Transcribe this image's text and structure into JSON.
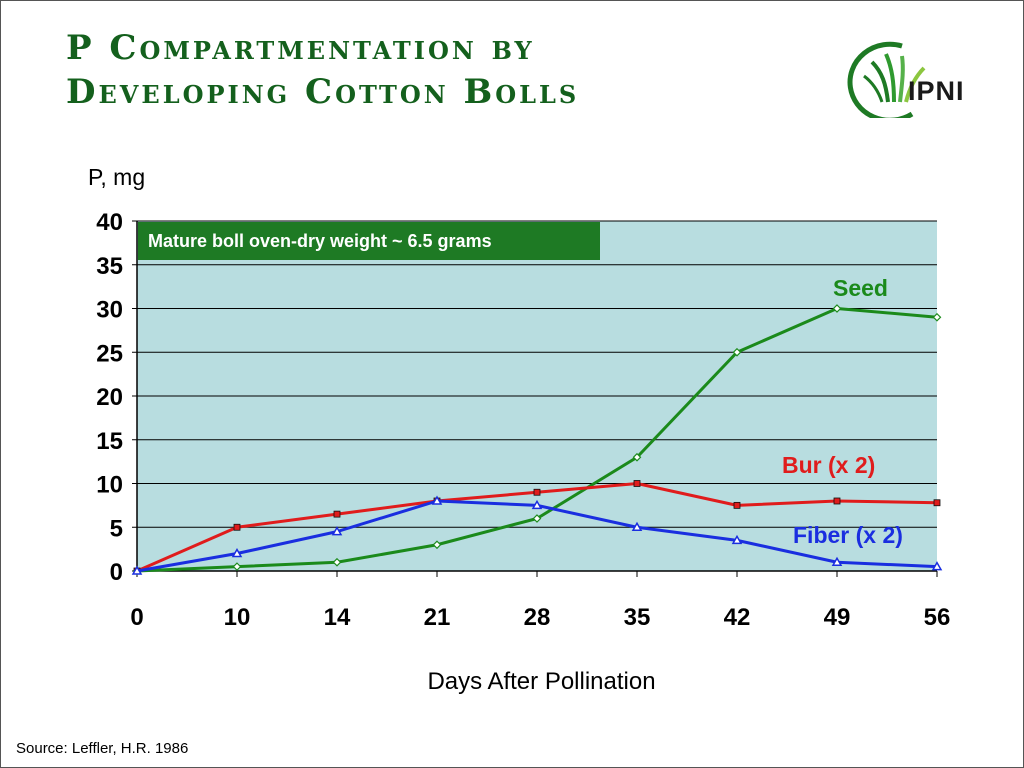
{
  "slide": {
    "title_line1": "P Compartmentation by",
    "title_line2": "Developing Cotton Bolls",
    "logo_text": "IPNI",
    "source": "Source: Leffler, H.R. 1986"
  },
  "colors": {
    "title": "#14601d",
    "plot_background": "#b8dde0",
    "seed": "#1b8a1b",
    "bur": "#e01c1c",
    "fiber": "#1a2ee0",
    "note_background": "#1e7a24"
  },
  "chart_data": {
    "type": "line",
    "title": "P Compartmentation by Developing Cotton Bolls",
    "xlabel": "Days After Pollination",
    "ylabel": "P, mg",
    "categories": [
      "0",
      "10",
      "14",
      "21",
      "28",
      "35",
      "42",
      "49",
      "56"
    ],
    "ylim": [
      0,
      40
    ],
    "yticks": [
      0,
      5,
      10,
      15,
      20,
      25,
      30,
      35,
      40
    ],
    "grid": true,
    "annotation": "Mature boll oven-dry weight ~ 6.5 grams",
    "series": [
      {
        "name": "Seed",
        "color": "#1b8a1b",
        "marker": "diamond",
        "values": [
          0,
          0.5,
          1,
          3,
          6,
          13,
          25,
          30,
          29
        ]
      },
      {
        "name": "Bur (x 2)",
        "color": "#e01c1c",
        "marker": "square",
        "values": [
          0,
          5,
          6.5,
          8,
          9,
          10,
          7.5,
          8,
          7.8
        ]
      },
      {
        "name": "Fiber (x 2)",
        "color": "#1a2ee0",
        "marker": "triangle",
        "values": [
          0,
          2,
          4.5,
          8,
          7.5,
          5,
          3.5,
          1,
          0.5
        ]
      }
    ]
  }
}
